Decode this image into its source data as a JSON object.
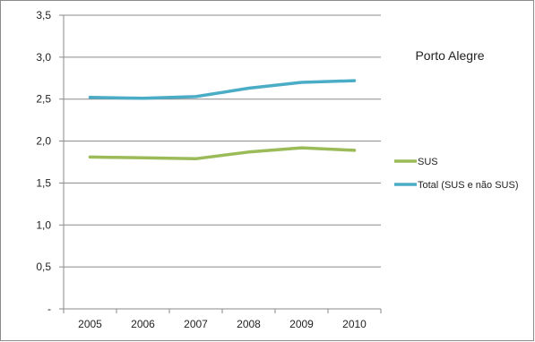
{
  "chart_data": {
    "type": "line",
    "x": [
      "2005",
      "2006",
      "2007",
      "2008",
      "2009",
      "2010"
    ],
    "ylim": [
      0,
      3.5
    ],
    "y_ticks": [
      {
        "value": 0,
        "label": "-"
      },
      {
        "value": 0.5,
        "label": "0,5"
      },
      {
        "value": 1.0,
        "label": "1,0"
      },
      {
        "value": 1.5,
        "label": "1,5"
      },
      {
        "value": 2.0,
        "label": "2,0"
      },
      {
        "value": 2.5,
        "label": "2,5"
      },
      {
        "value": 3.0,
        "label": "3,0"
      },
      {
        "value": 3.5,
        "label": "3,5"
      }
    ],
    "grid": "horizontal",
    "legend_position": "right",
    "annotation": "Porto Alegre",
    "series": [
      {
        "name": "SUS",
        "color": "#9bbb59",
        "values": [
          1.81,
          1.8,
          1.79,
          1.87,
          1.92,
          1.89
        ]
      },
      {
        "name": "Total (SUS e não SUS)",
        "color": "#4bacc6",
        "values": [
          2.52,
          2.51,
          2.53,
          2.63,
          2.7,
          2.72
        ]
      }
    ]
  }
}
